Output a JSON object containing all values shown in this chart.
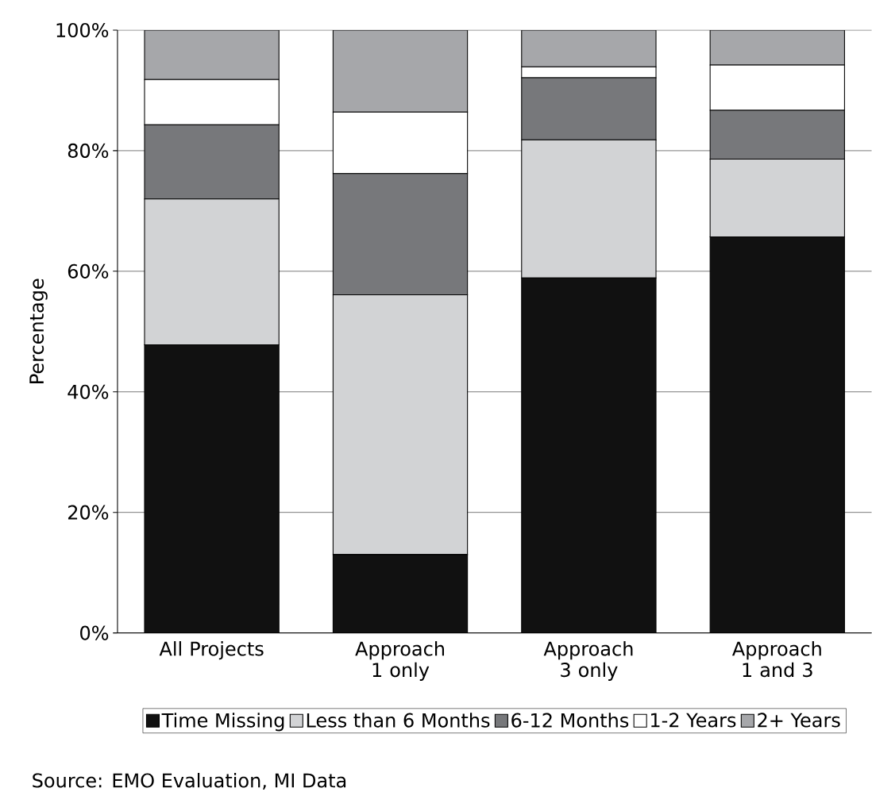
{
  "chart_data": {
    "type": "bar",
    "stacked": true,
    "ylabel": "Percentage",
    "categories": [
      "All Projects",
      "Approach 1 only",
      "Approach 3 only",
      "Approach 1 and 3"
    ],
    "series": [
      {
        "name": "Time Missing",
        "color": "#111111",
        "values": [
          47.8,
          13.0,
          58.9,
          65.7
        ]
      },
      {
        "name": "Less than 6 Months",
        "color": "#d2d3d5",
        "values": [
          24.2,
          43.1,
          22.9,
          12.9
        ]
      },
      {
        "name": "6-12 Months",
        "color": "#77787b",
        "values": [
          12.3,
          20.1,
          10.3,
          8.1
        ]
      },
      {
        "name": "1-2 Years",
        "color": "#ffffff",
        "values": [
          7.5,
          10.2,
          1.8,
          7.5
        ]
      },
      {
        "name": "2+ Years",
        "color": "#a6a7aa",
        "values": [
          8.2,
          13.6,
          6.1,
          5.8
        ]
      }
    ],
    "ylim": [
      0,
      100
    ],
    "yticks": [
      {
        "value": 0,
        "label": "0%"
      },
      {
        "value": 20,
        "label": "20%"
      },
      {
        "value": 40,
        "label": "40%"
      },
      {
        "value": 60,
        "label": "60%"
      },
      {
        "value": 80,
        "label": "80%"
      },
      {
        "value": 100,
        "label": "100%"
      }
    ],
    "grid": "y",
    "legend": "bottom",
    "annotations": [
      "Source: EMO Evaluation, MI Data"
    ]
  }
}
